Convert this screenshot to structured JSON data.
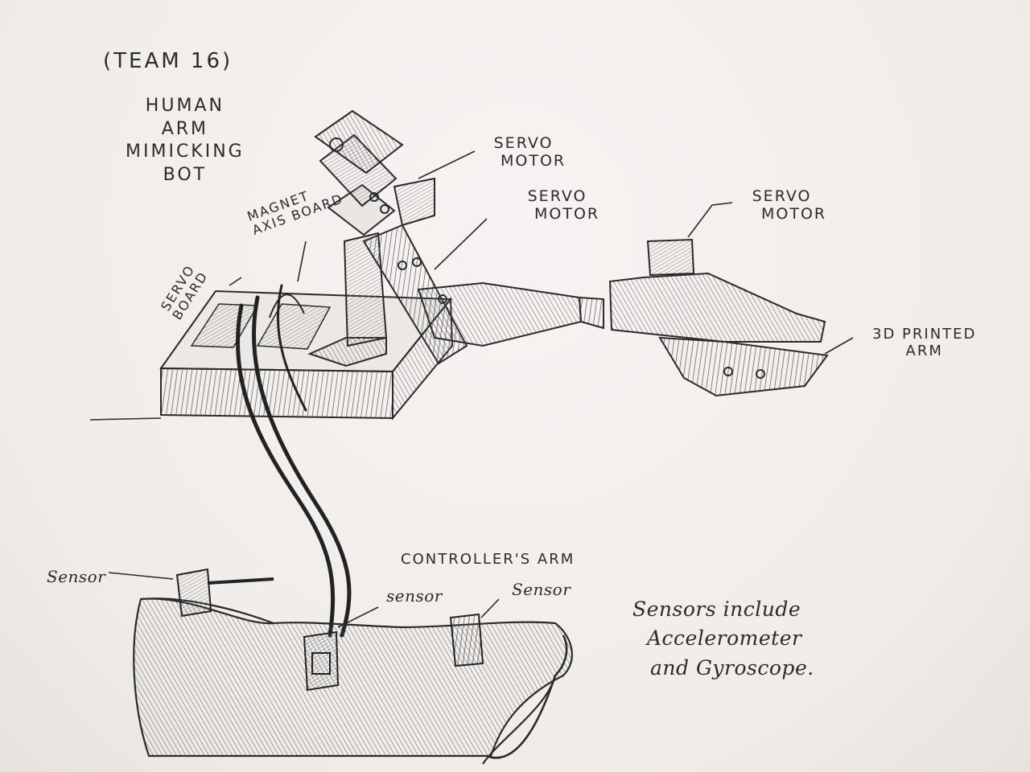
{
  "title": {
    "team": "(TEAM 16)",
    "line1": "HUMAN",
    "line2": "ARM",
    "line3": "MIMICKING",
    "line4": "BOT"
  },
  "labels": {
    "servo_board": [
      "SERVO",
      "BOARD"
    ],
    "magnet_axis_board": [
      "MAGNET",
      "AXIS BOARD"
    ],
    "servo_motor_top": [
      "SERVO",
      "MOTOR"
    ],
    "servo_motor_mid": [
      "SERVO",
      "MOTOR"
    ],
    "servo_motor_right": [
      "SERVO",
      "MOTOR"
    ],
    "printed_arm": [
      "3D PRINTED",
      "ARM"
    ],
    "controllers_arm": "CONTROLLER'S ARM",
    "sensor_left": "Sensor",
    "sensor_mid": "sensor",
    "sensor_right": "Sensor",
    "note": [
      "Sensors include",
      "Accelerometer",
      "and Gyroscope."
    ]
  },
  "colors": {
    "paper": "#f3f1ee",
    "pencil": "#2a2a2a",
    "shade": "#6a6a6a"
  }
}
